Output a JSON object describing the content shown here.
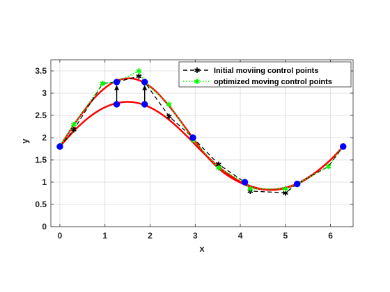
{
  "chart_data": {
    "type": "line",
    "title": "",
    "xlabel": "x",
    "ylabel": "y",
    "xlim": [
      -0.2,
      6.5
    ],
    "ylim": [
      0,
      3.75
    ],
    "xticks": [
      "0",
      "1",
      "2",
      "3",
      "4",
      "5",
      "6"
    ],
    "yticks": [
      "0",
      "0.5",
      "1",
      "1.5",
      "2",
      "2.5",
      "3",
      "3.5"
    ],
    "grid": true,
    "legend_position": "top-right",
    "series": [
      {
        "name": "Initial moviing control points",
        "color": "#000000",
        "style": "dashed-star",
        "x": [
          0,
          0.31,
          0.95,
          1.26,
          1.75,
          1.88,
          2.42,
          2.95,
          3.52,
          4.1,
          4.22,
          5.0,
          5.26,
          5.95,
          6.28
        ],
        "y": [
          1.8,
          2.18,
          3.22,
          3.25,
          3.38,
          3.25,
          2.48,
          2.0,
          1.4,
          1.0,
          0.8,
          0.76,
          0.96,
          1.35,
          1.8
        ]
      },
      {
        "name": "optimized moving control points",
        "color": "#00ff00",
        "style": "dotted-star",
        "x": [
          0,
          0.31,
          0.95,
          1.26,
          1.75,
          1.88,
          2.42,
          2.95,
          3.52,
          4.1,
          4.22,
          5.0,
          5.26,
          5.95,
          6.28
        ],
        "y": [
          1.8,
          2.3,
          3.22,
          3.25,
          3.5,
          3.25,
          2.75,
          1.95,
          1.32,
          1.0,
          0.85,
          0.85,
          0.96,
          1.35,
          1.8
        ]
      },
      {
        "color": "#ff0000",
        "style": "curve-lower",
        "x": [
          0,
          0.4,
          0.8,
          1.2,
          1.6,
          2.0,
          2.4,
          2.8,
          3.2,
          3.6,
          4.0,
          4.4,
          4.8,
          5.2,
          5.6,
          6.0,
          6.28
        ],
        "y": [
          1.8,
          2.24,
          2.57,
          2.76,
          2.8,
          2.68,
          2.42,
          2.05,
          1.64,
          1.28,
          1.01,
          0.86,
          0.83,
          0.93,
          1.16,
          1.5,
          1.8
        ]
      },
      {
        "color": "#ff0000",
        "style": "curve-upper",
        "x": [
          0,
          0.4,
          0.8,
          1.2,
          1.6,
          2.0,
          2.4,
          2.8,
          3.2,
          3.6,
          4.0,
          4.4,
          4.8,
          5.2,
          5.6,
          6.0,
          6.28
        ],
        "y": [
          1.8,
          2.42,
          2.93,
          3.25,
          3.33,
          3.15,
          2.74,
          2.2,
          1.65,
          1.24,
          0.99,
          0.85,
          0.84,
          0.94,
          1.17,
          1.5,
          1.8
        ]
      },
      {
        "color": "#0000ff",
        "style": "markers",
        "x": [
          0,
          1.26,
          1.26,
          1.88,
          1.88,
          2.95,
          4.1,
          5.26,
          6.28
        ],
        "y": [
          1.8,
          2.75,
          3.25,
          2.75,
          3.25,
          2.0,
          1.0,
          0.96,
          1.8
        ]
      }
    ],
    "arrows": [
      {
        "x": 1.26,
        "from": 2.78,
        "to": 3.18
      },
      {
        "x": 1.88,
        "from": 2.78,
        "to": 3.18
      }
    ]
  }
}
